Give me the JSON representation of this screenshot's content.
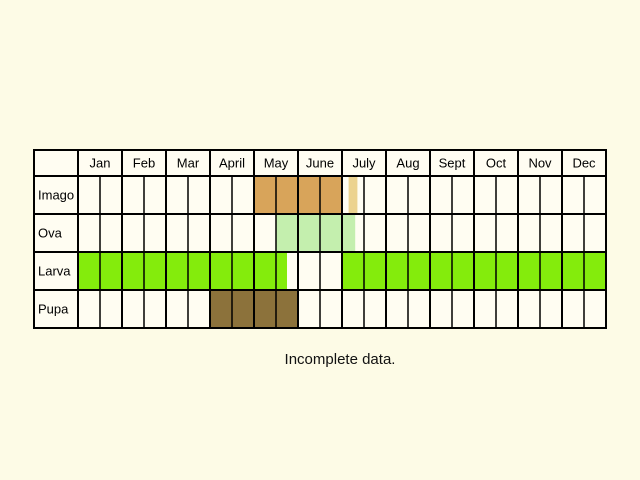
{
  "months": [
    "Jan",
    "Feb",
    "Mar",
    "April",
    "May",
    "June",
    "July",
    "Aug",
    "Sept",
    "Oct",
    "Nov",
    "Dec"
  ],
  "weeks_per_month": 2,
  "note": "Incomplete data.",
  "colors": {
    "background": "#fdfbe6",
    "cell": "#fffdf2",
    "line": "#000000",
    "imago": "#d8a45a",
    "imago_light": "#ecd38f",
    "ova": "#c4efae",
    "larva": "#84ec0c",
    "pupa": "#8c723b"
  },
  "stages": [
    {
      "label": "Imago",
      "fills": [
        {
          "from": 8,
          "to": 12,
          "color": "imago"
        },
        {
          "from": 12.3,
          "to": 12.7,
          "color": "imago_light"
        }
      ]
    },
    {
      "label": "Ova",
      "fills": [
        {
          "from": 9,
          "to": 12.6,
          "color": "ova"
        }
      ]
    },
    {
      "label": "Larva",
      "fills": [
        {
          "from": 0,
          "to": 9.5,
          "color": "larva"
        },
        {
          "from": 12,
          "to": 24,
          "color": "larva"
        }
      ]
    },
    {
      "label": "Pupa",
      "fills": [
        {
          "from": 6,
          "to": 10,
          "color": "pupa"
        }
      ]
    }
  ]
}
